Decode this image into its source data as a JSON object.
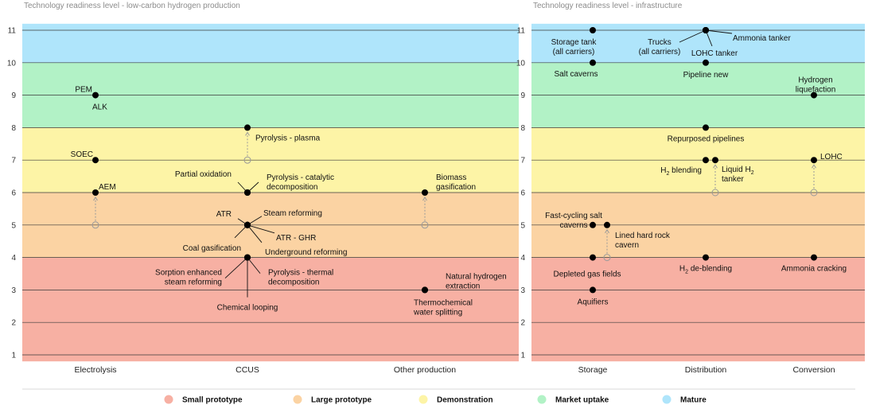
{
  "chart_data": [
    {
      "type": "scatter",
      "title": "Technology readiness level - low-carbon hydrogen production",
      "ylim": [
        1,
        11
      ],
      "yticks": [
        "1",
        "2",
        "3",
        "4",
        "5",
        "6",
        "7",
        "8",
        "9",
        "10",
        "11"
      ],
      "categories": [
        "Electrolysis",
        "CCUS",
        "Other production"
      ],
      "points": [
        {
          "category": "Electrolysis",
          "trl": 9,
          "label": [
            "PEM"
          ]
        },
        {
          "category": "Electrolysis",
          "trl": 9,
          "label": [
            "ALK"
          ]
        },
        {
          "category": "Electrolysis",
          "trl": 7,
          "label": [
            "SOEC"
          ]
        },
        {
          "category": "Electrolysis",
          "trl": 6,
          "from_trl": 5,
          "label": [
            "AEM"
          ]
        },
        {
          "category": "CCUS",
          "trl": 8,
          "from_trl": 7,
          "label": [
            "Pyrolysis - plasma"
          ]
        },
        {
          "category": "CCUS",
          "trl": 6,
          "label": [
            "Partial oxidation"
          ]
        },
        {
          "category": "CCUS",
          "trl": 6,
          "label": [
            "Pyrolysis - catalytic",
            "decomposition"
          ]
        },
        {
          "category": "CCUS",
          "trl": 5,
          "label": [
            "ATR"
          ]
        },
        {
          "category": "CCUS",
          "trl": 5,
          "label": [
            "Steam reforming"
          ]
        },
        {
          "category": "CCUS",
          "trl": 5,
          "label": [
            "ATR - GHR"
          ]
        },
        {
          "category": "CCUS",
          "trl": 5,
          "label": [
            "Coal gasification"
          ]
        },
        {
          "category": "CCUS",
          "trl": 5,
          "label": [
            "Underground reforming"
          ]
        },
        {
          "category": "CCUS",
          "trl": 4,
          "label": [
            "Sorption enhanced",
            "steam reforming"
          ]
        },
        {
          "category": "CCUS",
          "trl": 4,
          "label": [
            "Pyrolysis - thermal",
            "decomposition"
          ]
        },
        {
          "category": "CCUS",
          "trl": 4,
          "label": [
            "Chemical looping"
          ]
        },
        {
          "category": "Other production",
          "trl": 6,
          "from_trl": 5,
          "label": [
            "Biomass",
            "gasification"
          ]
        },
        {
          "category": "Other production",
          "trl": 3,
          "label": [
            "Natural hydrogen",
            "extraction"
          ]
        },
        {
          "category": "Other production",
          "trl": 3,
          "label": [
            "Thermochemical",
            "water splitting"
          ]
        }
      ]
    },
    {
      "type": "scatter",
      "title": "Technology readiness level - infrastructure",
      "ylim": [
        1,
        11
      ],
      "yticks": [
        "1",
        "2",
        "3",
        "4",
        "5",
        "6",
        "7",
        "8",
        "9",
        "10",
        "11"
      ],
      "categories": [
        "Storage",
        "Distribution",
        "Conversion"
      ],
      "points": [
        {
          "category": "Storage",
          "trl": 11,
          "label": [
            "Storage tank",
            "(all carriers)"
          ]
        },
        {
          "category": "Storage",
          "trl": 10,
          "label": [
            "Salt caverns"
          ]
        },
        {
          "category": "Storage",
          "trl": 5,
          "label": [
            "Fast-cycling salt",
            "caverns"
          ]
        },
        {
          "category": "Storage",
          "trl": 5,
          "from_trl": 4,
          "label": [
            "Lined hard rock",
            "cavern"
          ]
        },
        {
          "category": "Storage",
          "trl": 4,
          "label": [
            "Depleted gas fields"
          ]
        },
        {
          "category": "Storage",
          "trl": 3,
          "label": [
            "Aquifiers"
          ]
        },
        {
          "category": "Distribution",
          "trl": 11,
          "label": [
            "Trucks",
            "(all carriers)"
          ]
        },
        {
          "category": "Distribution",
          "trl": 11,
          "label": [
            "Ammonia tanker"
          ]
        },
        {
          "category": "Distribution",
          "trl": 11,
          "label": [
            "LOHC tanker"
          ]
        },
        {
          "category": "Distribution",
          "trl": 10,
          "label": [
            "Pipeline new"
          ]
        },
        {
          "category": "Distribution",
          "trl": 8,
          "label": [
            "Repurposed pipelines"
          ]
        },
        {
          "category": "Distribution",
          "trl": 7,
          "label": [
            "H2 blending"
          ]
        },
        {
          "category": "Distribution",
          "trl": 7,
          "from_trl": 6,
          "label": [
            "Liquid H2",
            "tanker"
          ]
        },
        {
          "category": "Distribution",
          "trl": 4,
          "label": [
            "H2 de-blending"
          ]
        },
        {
          "category": "Conversion",
          "trl": 9,
          "label": [
            "Hydrogen",
            "liquefaction"
          ]
        },
        {
          "category": "Conversion",
          "trl": 7,
          "from_trl": 6,
          "label": [
            "LOHC"
          ]
        },
        {
          "category": "Conversion",
          "trl": 4,
          "label": [
            "Ammonia cracking"
          ]
        }
      ]
    }
  ],
  "legend": [
    {
      "label": "Small prototype",
      "color": "#f7b0a3"
    },
    {
      "label": "Large prototype",
      "color": "#fbd3a3"
    },
    {
      "label": "Demonstration",
      "color": "#fdf4a6"
    },
    {
      "label": "Market uptake",
      "color": "#b2f2c6"
    },
    {
      "label": "Mature",
      "color": "#afe5fb"
    }
  ],
  "bands": [
    {
      "from": 0.8,
      "to": 4,
      "stage": "Small prototype"
    },
    {
      "from": 4,
      "to": 6,
      "stage": "Large prototype"
    },
    {
      "from": 6,
      "to": 8,
      "stage": "Demonstration"
    },
    {
      "from": 8,
      "to": 10,
      "stage": "Market uptake"
    },
    {
      "from": 10,
      "to": 11.2,
      "stage": "Mature"
    }
  ]
}
